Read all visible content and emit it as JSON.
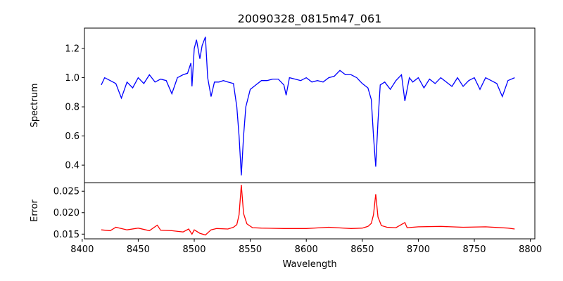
{
  "chart_data": [
    {
      "type": "line",
      "title": "20090328_0815m47_061",
      "xlabel": "",
      "ylabel": "Spectrum",
      "color": "#0000ff",
      "xlim": [
        8402,
        8804
      ],
      "ylim": [
        0.28,
        1.34
      ],
      "yticks": [
        0.4,
        0.6,
        0.8,
        1.0,
        1.2
      ],
      "ytick_labels": [
        "0.4",
        "0.6",
        "0.8",
        "1.0",
        "1.2"
      ],
      "x": [
        8417,
        8420,
        8425,
        8430,
        8435,
        8440,
        8445,
        8450,
        8455,
        8460,
        8465,
        8470,
        8475,
        8480,
        8485,
        8490,
        8494,
        8497,
        8498,
        8500,
        8502,
        8505,
        8507,
        8510,
        8512,
        8515,
        8518,
        8522,
        8526,
        8530,
        8535,
        8538,
        8540,
        8542,
        8544,
        8546,
        8550,
        8555,
        8560,
        8565,
        8570,
        8575,
        8580,
        8582,
        8585,
        8590,
        8595,
        8600,
        8605,
        8610,
        8615,
        8620,
        8625,
        8630,
        8635,
        8640,
        8645,
        8650,
        8655,
        8658,
        8660,
        8662,
        8664,
        8666,
        8670,
        8675,
        8680,
        8685,
        8688,
        8692,
        8695,
        8700,
        8705,
        8710,
        8715,
        8720,
        8725,
        8730,
        8735,
        8740,
        8745,
        8750,
        8755,
        8760,
        8765,
        8770,
        8775,
        8780,
        8786
      ],
      "y": [
        0.95,
        1.0,
        0.98,
        0.96,
        0.86,
        0.97,
        0.93,
        1.0,
        0.96,
        1.02,
        0.97,
        0.99,
        0.98,
        0.89,
        1.0,
        1.02,
        1.03,
        1.1,
        0.94,
        1.2,
        1.26,
        1.13,
        1.22,
        1.28,
        1.0,
        0.87,
        0.97,
        0.97,
        0.98,
        0.97,
        0.96,
        0.8,
        0.6,
        0.33,
        0.6,
        0.8,
        0.92,
        0.95,
        0.98,
        0.98,
        0.99,
        0.99,
        0.95,
        0.88,
        1.0,
        0.99,
        0.98,
        1.0,
        0.97,
        0.98,
        0.97,
        1.0,
        1.01,
        1.05,
        1.02,
        1.02,
        1.0,
        0.96,
        0.93,
        0.85,
        0.6,
        0.39,
        0.7,
        0.95,
        0.97,
        0.92,
        0.98,
        1.02,
        0.84,
        1.0,
        0.97,
        1.0,
        0.93,
        0.99,
        0.96,
        1.0,
        0.97,
        0.94,
        1.0,
        0.94,
        0.98,
        1.0,
        0.92,
        1.0,
        0.98,
        0.96,
        0.87,
        0.98,
        1.0
      ]
    },
    {
      "type": "line",
      "xlabel": "Wavelength",
      "ylabel": "Error",
      "color": "#ff0000",
      "xlim": [
        8402,
        8804
      ],
      "ylim": [
        0.0139,
        0.027
      ],
      "yticks": [
        0.015,
        0.02,
        0.025
      ],
      "ytick_labels": [
        "0.015",
        "0.020",
        "0.025"
      ],
      "xticks": [
        8400,
        8450,
        8500,
        8550,
        8600,
        8650,
        8700,
        8750,
        8800
      ],
      "xtick_labels": [
        "8400",
        "8450",
        "8500",
        "8550",
        "8600",
        "8650",
        "8700",
        "8750",
        "8800"
      ],
      "x": [
        8417,
        8425,
        8430,
        8440,
        8450,
        8460,
        8467,
        8470,
        8480,
        8490,
        8495,
        8498,
        8500,
        8505,
        8510,
        8515,
        8520,
        8530,
        8535,
        8538,
        8540,
        8542,
        8544,
        8547,
        8552,
        8560,
        8580,
        8600,
        8620,
        8640,
        8650,
        8655,
        8658,
        8660,
        8662,
        8664,
        8667,
        8672,
        8680,
        8688,
        8690,
        8700,
        8720,
        8740,
        8760,
        8780,
        8786
      ],
      "y": [
        0.016,
        0.0158,
        0.0166,
        0.016,
        0.0164,
        0.0158,
        0.0171,
        0.0159,
        0.0158,
        0.0155,
        0.0162,
        0.015,
        0.016,
        0.0152,
        0.0148,
        0.016,
        0.0163,
        0.0162,
        0.0166,
        0.0172,
        0.0195,
        0.0265,
        0.0198,
        0.0174,
        0.0165,
        0.0164,
        0.0163,
        0.0163,
        0.0166,
        0.0163,
        0.0164,
        0.0168,
        0.0175,
        0.0195,
        0.0243,
        0.019,
        0.017,
        0.0166,
        0.0165,
        0.0177,
        0.0165,
        0.0167,
        0.0168,
        0.0166,
        0.0167,
        0.0164,
        0.0162
      ]
    }
  ]
}
